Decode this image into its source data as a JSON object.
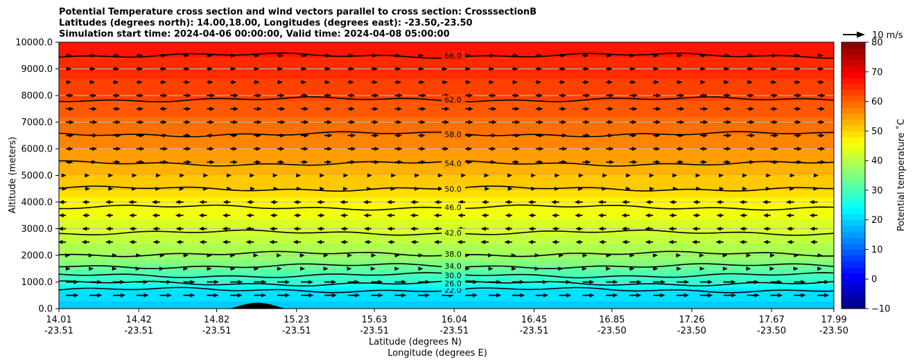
{
  "chart_data": {
    "type": "contour",
    "title_lines": [
      "Potential Temperature cross section and wind vectors parallel to cross section: CrosssectionB",
      "Latitudes (degrees north): 14.00,18.00, Longitudes (degrees east): -23.50,-23.50",
      "Simulation start time: 2024-04-06 00:00:00, Valid time: 2024-04-08 05:00:00"
    ],
    "ylabel": "Altitude (meters)",
    "xlabel_lat": "Latitude (degrees N)",
    "xlabel_lon": "Longitude (degrees E)",
    "ylim": [
      0,
      10000
    ],
    "y_ticks": [
      "0.0",
      "1000.0",
      "2000.0",
      "3000.0",
      "4000.0",
      "5000.0",
      "6000.0",
      "7000.0",
      "8000.0",
      "9000.0",
      "10000.0"
    ],
    "y_tick_values": [
      0,
      1000,
      2000,
      3000,
      4000,
      5000,
      6000,
      7000,
      8000,
      9000,
      10000
    ],
    "x_range": [
      14.01,
      17.99
    ],
    "x_ticks": [
      {
        "lat": "14.01",
        "lon": "-23.51",
        "v": 14.01
      },
      {
        "lat": "14.42",
        "lon": "-23.51",
        "v": 14.42
      },
      {
        "lat": "14.82",
        "lon": "-23.51",
        "v": 14.82
      },
      {
        "lat": "15.23",
        "lon": "-23.51",
        "v": 15.23
      },
      {
        "lat": "15.63",
        "lon": "-23.51",
        "v": 15.63
      },
      {
        "lat": "16.04",
        "lon": "-23.51",
        "v": 16.04
      },
      {
        "lat": "16.45",
        "lon": "-23.51",
        "v": 16.45
      },
      {
        "lat": "16.85",
        "lon": "-23.50",
        "v": 16.85
      },
      {
        "lat": "17.26",
        "lon": "-23.50",
        "v": 17.26
      },
      {
        "lat": "17.67",
        "lon": "-23.50",
        "v": 17.67
      },
      {
        "lat": "17.99",
        "lon": "-23.50",
        "v": 17.99
      }
    ],
    "contours": [
      {
        "label": "22.0",
        "alt": 700
      },
      {
        "label": "26.0",
        "alt": 950
      },
      {
        "label": "30.0",
        "alt": 1250
      },
      {
        "label": "34.0",
        "alt": 1600
      },
      {
        "label": "38.0",
        "alt": 2050
      },
      {
        "label": "42.0",
        "alt": 2850
      },
      {
        "label": "46.0",
        "alt": 3800
      },
      {
        "label": "50.0",
        "alt": 4500
      },
      {
        "label": "54.0",
        "alt": 5450
      },
      {
        "label": "58.0",
        "alt": 6550
      },
      {
        "label": "62.0",
        "alt": 7850
      },
      {
        "label": "66.0",
        "alt": 9500
      }
    ],
    "terrain": {
      "start": 14.88,
      "peak": 15.04,
      "end": 15.18,
      "peak_alt": 220
    },
    "colorbar": {
      "label": "Potential temperature ˚C",
      "range": [
        -10,
        80
      ],
      "ticks": [
        "−10",
        "0",
        "10",
        "20",
        "30",
        "40",
        "50",
        "60",
        "70",
        "80"
      ],
      "tick_values": [
        -10,
        0,
        10,
        20,
        30,
        40,
        50,
        60,
        70,
        80
      ]
    },
    "quiver_key": {
      "label": "10 m/s",
      "speed": 10
    },
    "colors": {
      "contour": "#000000",
      "grid": "#bdbdbd",
      "terrain": "#000000"
    }
  }
}
